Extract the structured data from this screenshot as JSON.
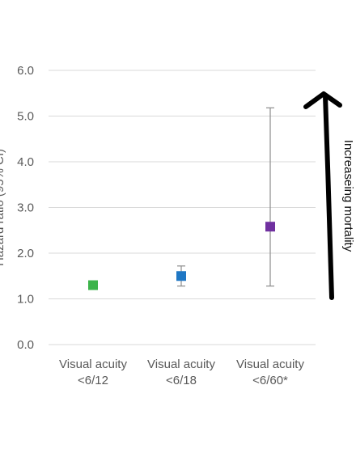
{
  "chart_data": {
    "type": "scatter",
    "title": "",
    "ylabel": "Hazard ratio (95% CI)",
    "xlabel": "",
    "ylim": [
      0,
      6
    ],
    "yticks": [
      0,
      1,
      2,
      3,
      4,
      5,
      6
    ],
    "ytick_labels": [
      "0.0",
      "1.0",
      "2.0",
      "3.0",
      "4.0",
      "5.0",
      "6.0"
    ],
    "grid": true,
    "categories": [
      [
        "Visual acuity",
        "<6/12"
      ],
      [
        "Visual acuity",
        "<6/18"
      ],
      [
        "Visual acuity",
        "<6/60*"
      ]
    ],
    "values": [
      1.3,
      1.5,
      2.58
    ],
    "ci_low": [
      null,
      1.28,
      1.28
    ],
    "ci_high": [
      null,
      1.72,
      5.18
    ],
    "marker_colors": [
      "#3cb44b",
      "#1f77c4",
      "#7030a0"
    ],
    "annotation": "Increaseing mortality"
  }
}
